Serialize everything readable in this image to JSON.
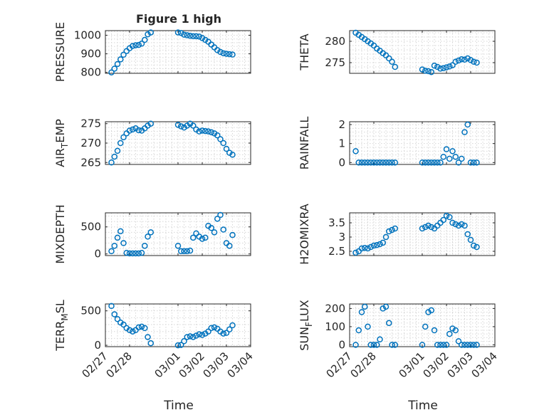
{
  "figure_title": "Figure 1 high",
  "chart_data": [
    {
      "type": "scatter",
      "title": "Figure 1 high",
      "ylabel": "PRESSURE",
      "ylim": [
        795,
        1025
      ],
      "yticks": [
        800,
        900,
        1000
      ],
      "ytick_labels": [
        "800",
        "900",
        "1000"
      ],
      "grid": true,
      "x": [
        "02/27 06:00",
        "02/27 09:00",
        "02/27 12:00",
        "02/27 15:00",
        "02/27 18:00",
        "02/27 21:00",
        "02/28 00:00",
        "02/28 03:00",
        "02/28 06:00",
        "02/28 09:00",
        "02/28 12:00",
        "02/28 15:00",
        "02/28 18:00",
        "02/28 21:00",
        "03/01 00:00",
        "03/01 03:00",
        "03/01 06:00",
        "03/01 09:00",
        "03/01 12:00",
        "03/01 15:00",
        "03/01 18:00",
        "03/01 21:00",
        "03/02 00:00",
        "03/02 03:00",
        "03/02 06:00",
        "03/02 09:00",
        "03/02 12:00",
        "03/02 15:00",
        "03/02 18:00",
        "03/02 21:00",
        "03/03 00:00",
        "03/03 03:00",
        "03/03 06:00"
      ],
      "values": [
        800,
        820,
        845,
        870,
        895,
        915,
        930,
        942,
        946,
        948,
        955,
        975,
        1005,
        1015,
        1015,
        1012,
        1003,
        1000,
        997,
        995,
        995,
        993,
        985,
        975,
        965,
        950,
        935,
        920,
        910,
        903,
        900,
        898,
        896
      ]
    },
    {
      "type": "scatter",
      "ylabel": "THETA",
      "ylim": [
        272.5,
        282.5
      ],
      "yticks": [
        275,
        280
      ],
      "ytick_labels": [
        "275",
        "280"
      ],
      "grid": true,
      "x": [
        "02/27 06:00",
        "02/27 09:00",
        "02/27 12:00",
        "02/27 15:00",
        "02/27 18:00",
        "02/27 21:00",
        "02/28 00:00",
        "02/28 03:00",
        "02/28 06:00",
        "02/28 09:00",
        "02/28 12:00",
        "02/28 15:00",
        "02/28 18:00",
        "02/28 21:00",
        "03/01 00:00",
        "03/01 03:00",
        "03/01 06:00",
        "03/01 09:00",
        "03/01 12:00",
        "03/01 15:00",
        "03/01 18:00",
        "03/01 21:00",
        "03/02 00:00",
        "03/02 03:00",
        "03/02 06:00",
        "03/02 09:00",
        "03/02 12:00",
        "03/02 15:00",
        "03/02 18:00",
        "03/02 21:00",
        "03/03 00:00",
        "03/03 03:00",
        "03/03 06:00"
      ],
      "values": [
        282.0,
        281.5,
        281.0,
        280.5,
        280.0,
        279.5,
        279.0,
        278.3,
        277.8,
        277.2,
        276.7,
        276.0,
        275.2,
        274.0,
        273.4,
        273.1,
        273.0,
        272.8,
        274.3,
        274.0,
        273.6,
        273.7,
        273.9,
        274.1,
        274.4,
        275.2,
        275.5,
        275.8,
        275.7,
        276.0,
        275.6,
        275.2,
        275.0
      ]
    },
    {
      "type": "scatter",
      "ylabel": "AIR_TEMP",
      "ylim": [
        264.5,
        275.5
      ],
      "yticks": [
        265,
        270,
        275
      ],
      "ytick_labels": [
        "265",
        "270",
        "275"
      ],
      "grid": true,
      "x": [
        "02/27 06:00",
        "02/27 09:00",
        "02/27 12:00",
        "02/27 15:00",
        "02/27 18:00",
        "02/27 21:00",
        "02/28 00:00",
        "02/28 03:00",
        "02/28 06:00",
        "02/28 09:00",
        "02/28 12:00",
        "02/28 15:00",
        "02/28 18:00",
        "02/28 21:00",
        "03/01 00:00",
        "03/01 03:00",
        "03/01 06:00",
        "03/01 09:00",
        "03/01 12:00",
        "03/01 15:00",
        "03/01 18:00",
        "03/01 21:00",
        "03/02 00:00",
        "03/02 03:00",
        "03/02 06:00",
        "03/02 09:00",
        "03/02 12:00",
        "03/02 15:00",
        "03/02 18:00",
        "03/02 21:00",
        "03/03 00:00",
        "03/03 03:00",
        "03/03 06:00"
      ],
      "values": [
        265.0,
        266.5,
        268.0,
        270.0,
        271.5,
        272.5,
        273.2,
        273.5,
        273.8,
        273.3,
        273.2,
        273.8,
        274.5,
        275.0,
        274.7,
        274.3,
        274.0,
        274.5,
        275.0,
        274.5,
        273.5,
        273.0,
        273.2,
        273.1,
        273.0,
        272.8,
        272.5,
        272.0,
        271.0,
        270.0,
        268.5,
        267.5,
        267.0
      ]
    },
    {
      "type": "scatter",
      "ylabel": "RAINFALL",
      "ylim": [
        -0.1,
        2.15
      ],
      "yticks": [
        0,
        1,
        2
      ],
      "ytick_labels": [
        "0",
        "1",
        "2"
      ],
      "grid": true,
      "x": [
        "02/27 06:00",
        "02/27 09:00",
        "02/27 12:00",
        "02/27 15:00",
        "02/27 18:00",
        "02/27 21:00",
        "02/28 00:00",
        "02/28 03:00",
        "02/28 06:00",
        "02/28 09:00",
        "02/28 12:00",
        "02/28 15:00",
        "02/28 18:00",
        "02/28 21:00",
        "03/01 00:00",
        "03/01 03:00",
        "03/01 06:00",
        "03/01 09:00",
        "03/01 12:00",
        "03/01 15:00",
        "03/01 18:00",
        "03/01 21:00",
        "03/02 00:00",
        "03/02 03:00",
        "03/02 06:00",
        "03/02 09:00",
        "03/02 12:00",
        "03/02 15:00",
        "03/02 18:00",
        "03/02 21:00",
        "03/03 00:00",
        "03/03 03:00",
        "03/03 06:00"
      ],
      "values": [
        0.6,
        0,
        0,
        0,
        0,
        0,
        0,
        0,
        0,
        0,
        0,
        0,
        0,
        0,
        0,
        0,
        0,
        0,
        0,
        0,
        0,
        0.3,
        0.7,
        0.2,
        0.6,
        0.3,
        0,
        0.2,
        1.6,
        2.0,
        0,
        0,
        0
      ]
    },
    {
      "type": "scatter",
      "ylabel": "MIXDEPTH",
      "ylim": [
        -30,
        760
      ],
      "yticks": [
        0,
        500
      ],
      "ytick_labels": [
        "0",
        "500"
      ],
      "grid": true,
      "x": [
        "02/27 06:00",
        "02/27 09:00",
        "02/27 12:00",
        "02/27 15:00",
        "02/27 18:00",
        "02/27 21:00",
        "02/28 00:00",
        "02/28 03:00",
        "02/28 06:00",
        "02/28 09:00",
        "02/28 12:00",
        "02/28 15:00",
        "02/28 18:00",
        "02/28 21:00",
        "03/01 00:00",
        "03/01 03:00",
        "03/01 06:00",
        "03/01 09:00",
        "03/01 12:00",
        "03/01 15:00",
        "03/01 18:00",
        "03/01 21:00",
        "03/02 00:00",
        "03/02 03:00",
        "03/02 06:00",
        "03/02 09:00",
        "03/02 12:00",
        "03/02 15:00",
        "03/02 18:00",
        "03/02 21:00",
        "03/03 00:00",
        "03/03 03:00",
        "03/03 06:00"
      ],
      "values": [
        50,
        150,
        300,
        420,
        200,
        20,
        10,
        10,
        10,
        10,
        20,
        150,
        320,
        400,
        150,
        50,
        50,
        50,
        60,
        300,
        380,
        320,
        280,
        300,
        520,
        480,
        400,
        650,
        720,
        450,
        200,
        150,
        350
      ]
    },
    {
      "type": "scatter",
      "ylabel": "H2OMIXRA",
      "ylim": [
        2.35,
        3.85
      ],
      "yticks": [
        2.5,
        3,
        3.5
      ],
      "ytick_labels": [
        "2.5",
        "3",
        "3.5"
      ],
      "grid": true,
      "x": [
        "02/27 06:00",
        "02/27 09:00",
        "02/27 12:00",
        "02/27 15:00",
        "02/27 18:00",
        "02/27 21:00",
        "02/28 00:00",
        "02/28 03:00",
        "02/28 06:00",
        "02/28 09:00",
        "02/28 12:00",
        "02/28 15:00",
        "02/28 18:00",
        "02/28 21:00",
        "03/01 00:00",
        "03/01 03:00",
        "03/01 06:00",
        "03/01 09:00",
        "03/01 12:00",
        "03/01 15:00",
        "03/01 18:00",
        "03/01 21:00",
        "03/02 00:00",
        "03/02 03:00",
        "03/02 06:00",
        "03/02 09:00",
        "03/02 12:00",
        "03/02 15:00",
        "03/02 18:00",
        "03/02 21:00",
        "03/03 00:00",
        "03/03 03:00",
        "03/03 06:00"
      ],
      "values": [
        2.45,
        2.5,
        2.6,
        2.62,
        2.6,
        2.65,
        2.7,
        2.72,
        2.75,
        2.8,
        3.0,
        3.2,
        3.25,
        3.3,
        3.3,
        3.35,
        3.4,
        3.35,
        3.3,
        3.4,
        3.5,
        3.6,
        3.75,
        3.7,
        3.5,
        3.45,
        3.4,
        3.45,
        3.4,
        3.1,
        2.9,
        2.7,
        2.65
      ]
    },
    {
      "type": "scatter",
      "ylabel": "TERR_MSL",
      "ylim": [
        -20,
        600
      ],
      "yticks": [
        0,
        500
      ],
      "ytick_labels": [
        "0",
        "500"
      ],
      "grid": true,
      "x": [
        "02/27 06:00",
        "02/27 09:00",
        "02/27 12:00",
        "02/27 15:00",
        "02/27 18:00",
        "02/27 21:00",
        "02/28 00:00",
        "02/28 03:00",
        "02/28 06:00",
        "02/28 09:00",
        "02/28 12:00",
        "02/28 15:00",
        "02/28 18:00",
        "02/28 21:00",
        "03/01 00:00",
        "03/01 03:00",
        "03/01 06:00",
        "03/01 09:00",
        "03/01 12:00",
        "03/01 15:00",
        "03/01 18:00",
        "03/01 21:00",
        "03/02 00:00",
        "03/02 03:00",
        "03/02 06:00",
        "03/02 09:00",
        "03/02 12:00",
        "03/02 15:00",
        "03/02 18:00",
        "03/02 21:00",
        "03/03 00:00",
        "03/03 03:00",
        "03/03 06:00"
      ],
      "values": [
        570,
        450,
        380,
        330,
        300,
        250,
        220,
        200,
        220,
        260,
        270,
        250,
        120,
        30,
        0,
        5,
        60,
        120,
        130,
        120,
        140,
        160,
        150,
        170,
        200,
        250,
        260,
        240,
        200,
        170,
        180,
        230,
        290
      ]
    },
    {
      "type": "scatter",
      "ylabel": "SUN_FLUX",
      "ylim": [
        -10,
        225
      ],
      "yticks": [
        0,
        100,
        200
      ],
      "ytick_labels": [
        "0",
        "100",
        "200"
      ],
      "grid": true,
      "x": [
        "02/27 06:00",
        "02/27 09:00",
        "02/27 12:00",
        "02/27 15:00",
        "02/27 18:00",
        "02/27 21:00",
        "02/28 00:00",
        "02/28 03:00",
        "02/28 06:00",
        "02/28 09:00",
        "02/28 12:00",
        "02/28 15:00",
        "02/28 18:00",
        "02/28 21:00",
        "03/01 00:00",
        "03/01 03:00",
        "03/01 06:00",
        "03/01 09:00",
        "03/01 12:00",
        "03/01 15:00",
        "03/01 18:00",
        "03/01 21:00",
        "03/02 00:00",
        "03/02 03:00",
        "03/02 06:00",
        "03/02 09:00",
        "03/02 12:00",
        "03/02 15:00",
        "03/02 18:00",
        "03/02 21:00",
        "03/03 00:00",
        "03/03 03:00",
        "03/03 06:00"
      ],
      "values": [
        0,
        80,
        180,
        210,
        100,
        0,
        0,
        0,
        30,
        200,
        210,
        120,
        0,
        0,
        0,
        100,
        180,
        190,
        80,
        0,
        0,
        0,
        0,
        60,
        90,
        80,
        20,
        0,
        0,
        0,
        0,
        0,
        0
      ]
    }
  ],
  "x_axis": {
    "range": [
      "02/27",
      "03/04"
    ],
    "tick_labels": [
      "02/27",
      "02/28",
      "03/01",
      "03/02",
      "03/03",
      "03/04"
    ],
    "xlabel_left": "Time",
    "xlabel_right": "Time"
  },
  "colors": {
    "marker": "#0072bd",
    "axes": "#262626",
    "grid": "#d6d6d6",
    "background": "#ffffff"
  }
}
